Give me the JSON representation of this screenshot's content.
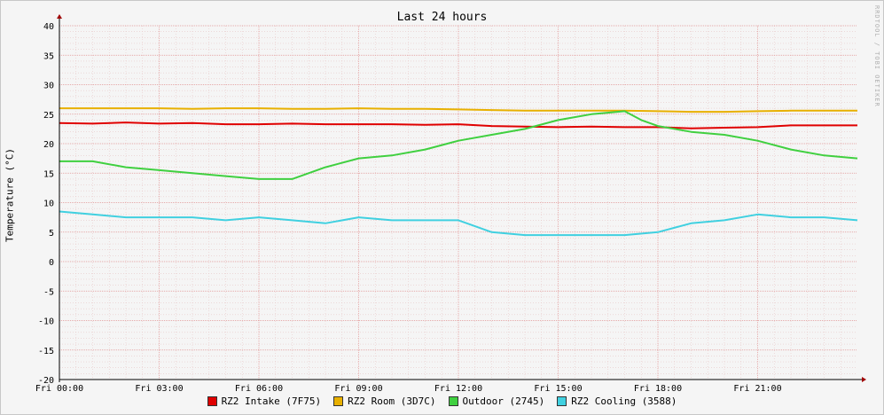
{
  "chart_data": {
    "type": "line",
    "title": "Last 24 hours",
    "ylabel": "Temperature (°C)",
    "watermark": "RRDTOOL / TOBI OETIKER",
    "ylim": [
      -20,
      40
    ],
    "yticks": [
      40,
      35,
      30,
      25,
      20,
      15,
      10,
      5,
      0,
      -5,
      -10,
      -15,
      -20
    ],
    "xlim": [
      0,
      24
    ],
    "xticks": [
      {
        "hour": 0,
        "label": "Fri 00:00"
      },
      {
        "hour": 3,
        "label": "Fri 03:00"
      },
      {
        "hour": 6,
        "label": "Fri 06:00"
      },
      {
        "hour": 9,
        "label": "Fri 09:00"
      },
      {
        "hour": 12,
        "label": "Fri 12:00"
      },
      {
        "hour": 15,
        "label": "Fri 15:00"
      },
      {
        "hour": 18,
        "label": "Fri 18:00"
      },
      {
        "hour": 21,
        "label": "Fri 21:00"
      }
    ],
    "grid": true,
    "legend_position": "bottom",
    "series": [
      {
        "name": "RZ2 Intake (7F75)",
        "color": "#e00000",
        "x": [
          0.0,
          1.0,
          2.0,
          3.0,
          4.0,
          5.0,
          6.0,
          7.0,
          8.0,
          9.0,
          10.0,
          11.0,
          12.0,
          13.0,
          14.0,
          15.0,
          16.0,
          17.0,
          18.0,
          19.0,
          20.0,
          21.0,
          22.0,
          23.0,
          24.0
        ],
        "y": [
          23.5,
          23.4,
          23.6,
          23.4,
          23.5,
          23.3,
          23.3,
          23.4,
          23.3,
          23.3,
          23.3,
          23.2,
          23.3,
          23.0,
          22.9,
          22.8,
          22.9,
          22.8,
          22.8,
          22.6,
          22.7,
          22.8,
          23.1,
          23.1,
          23.1
        ]
      },
      {
        "name": "RZ2 Room (3D7C)",
        "color": "#e8b000",
        "x": [
          0.0,
          1.0,
          2.0,
          3.0,
          4.0,
          5.0,
          6.0,
          7.0,
          8.0,
          9.0,
          10.0,
          11.0,
          12.0,
          13.0,
          14.0,
          15.0,
          16.0,
          17.0,
          18.0,
          19.0,
          20.0,
          21.0,
          22.0,
          23.0,
          24.0
        ],
        "y": [
          26.0,
          26.0,
          26.0,
          26.0,
          25.9,
          26.0,
          26.0,
          25.9,
          25.9,
          26.0,
          25.9,
          25.9,
          25.8,
          25.7,
          25.6,
          25.6,
          25.6,
          25.6,
          25.5,
          25.4,
          25.4,
          25.5,
          25.6,
          25.6,
          25.6
        ]
      },
      {
        "name": "Outdoor (2745)",
        "color": "#40d040",
        "x": [
          0.0,
          1.0,
          2.0,
          3.0,
          4.0,
          5.0,
          6.0,
          7.0,
          8.0,
          9.0,
          10.0,
          11.0,
          12.0,
          13.0,
          14.0,
          15.0,
          16.0,
          17.0,
          17.5,
          18.0,
          19.0,
          20.0,
          21.0,
          22.0,
          23.0,
          24.0
        ],
        "y": [
          17.0,
          17.0,
          16.0,
          15.5,
          15.0,
          14.5,
          14.0,
          14.0,
          16.0,
          17.5,
          18.0,
          19.0,
          20.5,
          21.5,
          22.5,
          24.0,
          25.0,
          25.5,
          24.0,
          23.0,
          22.0,
          21.5,
          20.5,
          19.0,
          18.0,
          17.5
        ]
      },
      {
        "name": "RZ2 Cooling (3588)",
        "color": "#40d0e0",
        "x": [
          0.0,
          1.0,
          2.0,
          3.0,
          4.0,
          5.0,
          6.0,
          7.0,
          8.0,
          9.0,
          10.0,
          11.0,
          12.0,
          13.0,
          14.0,
          15.0,
          16.0,
          17.0,
          18.0,
          19.0,
          20.0,
          21.0,
          22.0,
          23.0,
          24.0
        ],
        "y": [
          8.5,
          8.0,
          7.5,
          7.5,
          7.5,
          7.0,
          7.5,
          7.0,
          6.5,
          7.5,
          7.0,
          7.0,
          7.0,
          5.0,
          4.5,
          4.5,
          4.5,
          4.5,
          5.0,
          6.5,
          7.0,
          8.0,
          7.5,
          7.5,
          7.0
        ]
      }
    ]
  }
}
